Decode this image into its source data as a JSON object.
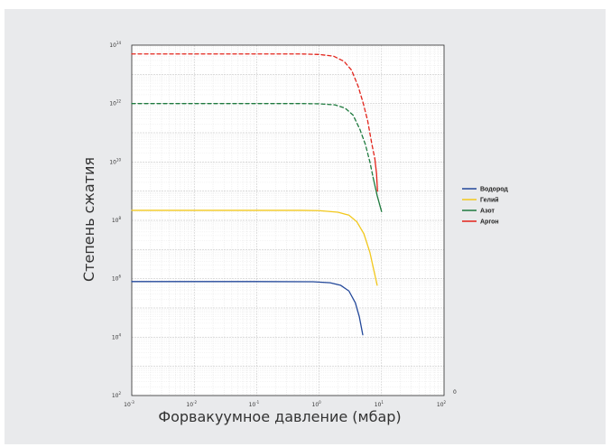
{
  "chart_data": {
    "type": "line",
    "x_scale": "log",
    "y_scale": "log",
    "xlim": [
      0.001,
      100
    ],
    "ylim": [
      100,
      100000000000000
    ],
    "xlabel": "Форвакуумное давление (мбар)",
    "ylabel": "Степень сжатия",
    "grid": true,
    "legend_position": "right",
    "x_ticks": [
      {
        "value": 0.001,
        "base": "10",
        "exp": "-3"
      },
      {
        "value": 0.01,
        "base": "10",
        "exp": "-2"
      },
      {
        "value": 0.1,
        "base": "10",
        "exp": "-1"
      },
      {
        "value": 1,
        "base": "10",
        "exp": "0"
      },
      {
        "value": 10,
        "base": "10",
        "exp": "1"
      },
      {
        "value": 100,
        "base": "10",
        "exp": "2"
      }
    ],
    "y_ticks": [
      {
        "value": 100,
        "base": "10",
        "exp": "2"
      },
      {
        "value": 10000,
        "base": "10",
        "exp": "4"
      },
      {
        "value": 1000000,
        "base": "10",
        "exp": "6"
      },
      {
        "value": 100000000,
        "base": "10",
        "exp": "8"
      },
      {
        "value": 10000000000,
        "base": "10",
        "exp": "10"
      },
      {
        "value": 1000000000000,
        "base": "10",
        "exp": "12"
      },
      {
        "value": 100000000000000,
        "base": "10",
        "exp": "14"
      }
    ],
    "stray_label": "0",
    "series": [
      {
        "name": "Водород",
        "color": "#23489a",
        "style": "solid",
        "points": [
          [
            0.001,
            800000
          ],
          [
            0.1,
            800000
          ],
          [
            0.8,
            790000
          ],
          [
            1.5,
            730000
          ],
          [
            2.2,
            600000
          ],
          [
            3,
            380000
          ],
          [
            3.8,
            150000
          ],
          [
            4.4,
            50000
          ],
          [
            5,
            12000
          ]
        ]
      },
      {
        "name": "Гелий",
        "color": "#f2c81d",
        "style": "solid",
        "points": [
          [
            0.001,
            220000000
          ],
          [
            0.5,
            220000000
          ],
          [
            1,
            215000000
          ],
          [
            2,
            190000000
          ],
          [
            3,
            150000000
          ],
          [
            4,
            90000000
          ],
          [
            5.2,
            35000000
          ],
          [
            6.5,
            8000000
          ],
          [
            7.5,
            2000000
          ],
          [
            8.5,
            600000
          ]
        ]
      },
      {
        "name": "Азот",
        "color": "#1e7a3e",
        "style": "dashed",
        "points": [
          [
            0.001,
            1000000000000
          ],
          [
            0.5,
            1000000000000
          ],
          [
            1,
            980000000000
          ],
          [
            1.8,
            900000000000
          ],
          [
            2.6,
            700000000000
          ],
          [
            3.5,
            400000000000
          ],
          [
            4.5,
            130000000000
          ],
          [
            5.5,
            40000000000
          ],
          [
            6.5,
            10000000000
          ],
          [
            7.3,
            3000000000
          ]
        ]
      },
      {
        "name": "Азот",
        "color": "#1e7a3e",
        "style": "solid",
        "legend": true,
        "points": [
          [
            7.3,
            3000000000
          ],
          [
            8.5,
            700000000
          ],
          [
            10,
            200000000
          ]
        ]
      },
      {
        "name": "Аргон",
        "color": "#e2231a",
        "style": "dashed",
        "points": [
          [
            0.001,
            50000000000000
          ],
          [
            0.5,
            50000000000000
          ],
          [
            1,
            48000000000000
          ],
          [
            1.7,
            42000000000000
          ],
          [
            2.5,
            28000000000000
          ],
          [
            3.3,
            14000000000000
          ],
          [
            4.2,
            4000000000000
          ],
          [
            5.1,
            1000000000000
          ],
          [
            6,
            250000000000
          ],
          [
            7,
            40000000000
          ],
          [
            7.8,
            13000000000
          ]
        ]
      },
      {
        "name": "Аргон",
        "color": "#e2231a",
        "style": "solid",
        "legend": true,
        "points": [
          [
            7.8,
            13000000000
          ],
          [
            8.3,
            4000000000
          ],
          [
            8.6,
            1000000000
          ]
        ]
      }
    ],
    "legend": [
      {
        "name": "Водород",
        "color": "#23489a"
      },
      {
        "name": "Гелий",
        "color": "#f2c81d"
      },
      {
        "name": "Азот",
        "color": "#1e7a3e"
      },
      {
        "name": "Аргон",
        "color": "#e2231a"
      }
    ]
  }
}
